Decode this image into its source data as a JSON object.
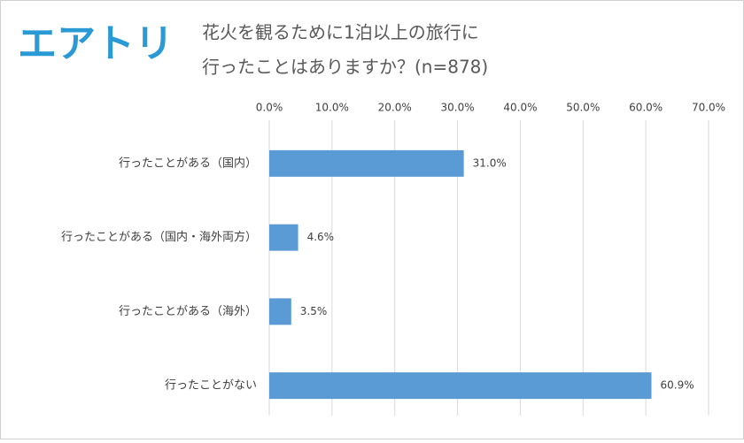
{
  "logo": "エアトリ",
  "chart_data": {
    "type": "bar",
    "orientation": "horizontal",
    "title": [
      "花火を観るために1泊以上の旅行に",
      "行ったことはありますか？(n=878)"
    ],
    "categories": [
      "行ったことがある（国内）",
      "行ったことがある（国内・海外両方）",
      "行ったことがある（海外）",
      "行ったことがない"
    ],
    "values": [
      31.0,
      4.6,
      3.5,
      60.9
    ],
    "value_labels": [
      "31.0%",
      "4.6%",
      "3.5%",
      "60.9%"
    ],
    "color": "#5b9bd5",
    "xlim": [
      0,
      70
    ],
    "xticks": [
      {
        "value": 0,
        "label": "0.0%"
      },
      {
        "value": 10,
        "label": "10.0%"
      },
      {
        "value": 20,
        "label": "20.0%"
      },
      {
        "value": 30,
        "label": "30.0%"
      },
      {
        "value": 40,
        "label": "40.0%"
      },
      {
        "value": 50,
        "label": "50.0%"
      },
      {
        "value": 60,
        "label": "60.0%"
      },
      {
        "value": 70,
        "label": "70.0%"
      }
    ],
    "grid": true
  }
}
